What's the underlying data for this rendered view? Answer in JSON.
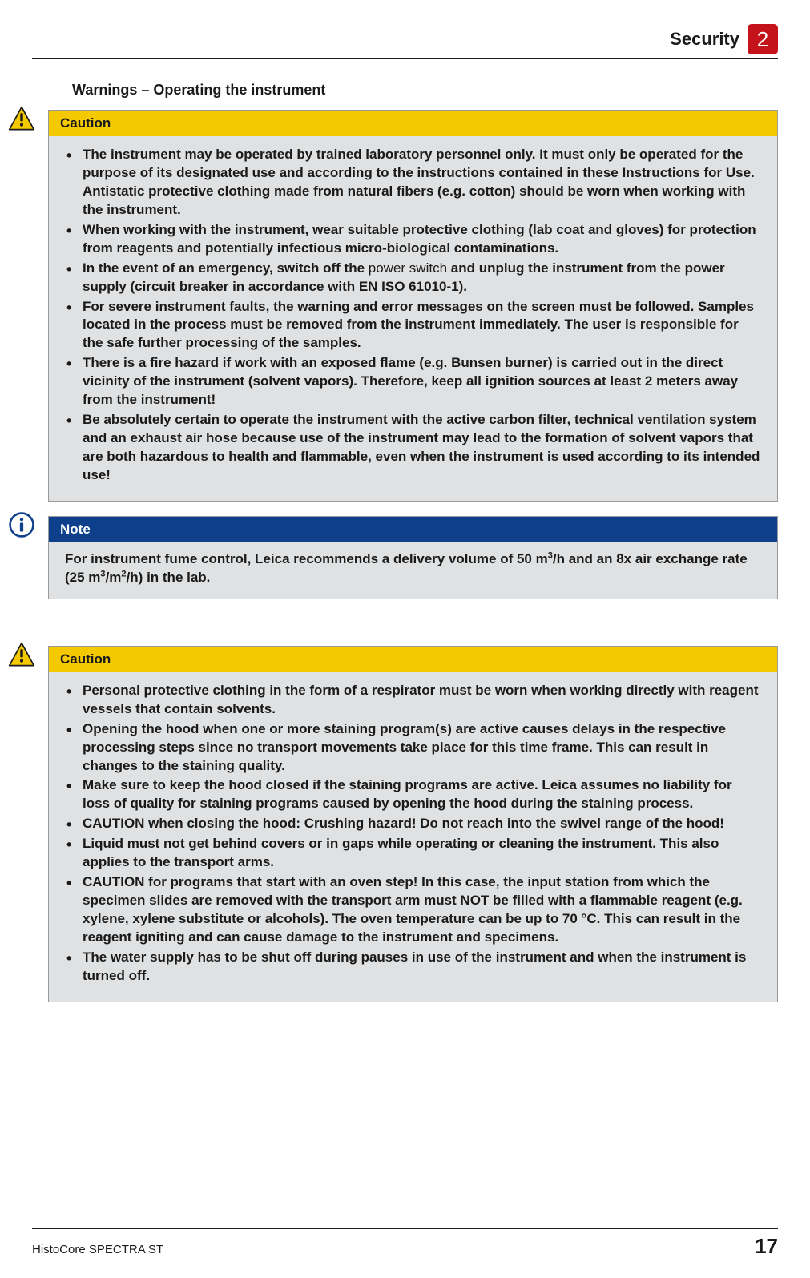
{
  "header": {
    "section_title": "Security",
    "chapter_number": "2"
  },
  "heading": "Warnings – Operating the instrument",
  "caution1": {
    "label": "Caution",
    "items": [
      "The instrument may be operated by trained laboratory personnel only. It must only be operated for the purpose of its designated use and according to the instructions contained in these Instructions for Use. Antistatic protective clothing made from natural fibers (e.g. cotton) should be worn when working with the instrument.",
      "When working with the instrument, wear suitable protective clothing (lab coat and gloves) for protection from reagents and potentially infectious micro-biological contaminations.",
      "In the event of an emergency, switch off the <span class=\"light\">power switch</span> and unplug the instrument from the power supply (circuit breaker in accordance with EN ISO 61010-1).",
      "For severe instrument faults, the warning and error messages on the screen must be followed. Samples located in the process must be removed from the instrument immediately. The user is responsible for the safe further processing of the samples.",
      "There is a fire hazard if work with an exposed flame (e.g. Bunsen burner) is carried out in the direct vicinity of the instrument (solvent vapors). Therefore, keep all ignition sources at least 2 meters away from the instrument!",
      "Be absolutely certain to operate the instrument with the active carbon filter, technical ventilation system and an exhaust air hose because use of the instrument may lead to the formation of solvent vapors that are both hazardous to health and flammable, even when the instrument is used according to its intended use!"
    ]
  },
  "note": {
    "label": "Note",
    "text": "For instrument fume control, Leica recommends a delivery volume of 50 m<sup>3</sup>/h and an 8x air exchange rate (25 m<sup>3</sup>/m<sup>2</sup>/h) in the lab."
  },
  "caution2": {
    "label": "Caution",
    "items": [
      "Personal protective clothing in the form of a respirator must be worn when working directly with reagent vessels that contain solvents.",
      "Opening the hood when one or more staining program(s) are active causes delays in the respective processing steps since no transport movements take place for this time frame. This can result in changes to the staining quality.",
      "Make sure to keep the hood closed if the staining programs are active. Leica assumes no liability for loss of quality for staining programs caused by opening the hood during the staining process.",
      "CAUTION when closing the hood: Crushing hazard! Do not reach into the swivel range of the hood!",
      "Liquid must not get behind covers or in gaps while operating or cleaning the instrument. This also applies to the transport arms.",
      "CAUTION for programs that start with an oven step! In this case, the input station from which the specimen slides are removed with the transport arm must NOT be filled with a flammable reagent (e.g. xylene, xylene substitute or alcohols). The oven temperature can be up to 70 °C. This can result in the reagent igniting and can cause damage to the instrument and specimens.",
      "The water supply has to be shut off during pauses in use of the instrument and when the instrument is turned off."
    ]
  },
  "footer": {
    "product": "HistoCore SPECTRA ST",
    "page": "17"
  },
  "colors": {
    "caution_header_bg": "#f4c900",
    "note_header_bg": "#0d3f8a",
    "badge_bg": "#c4131a",
    "callout_bg": "#e0e1e2"
  }
}
